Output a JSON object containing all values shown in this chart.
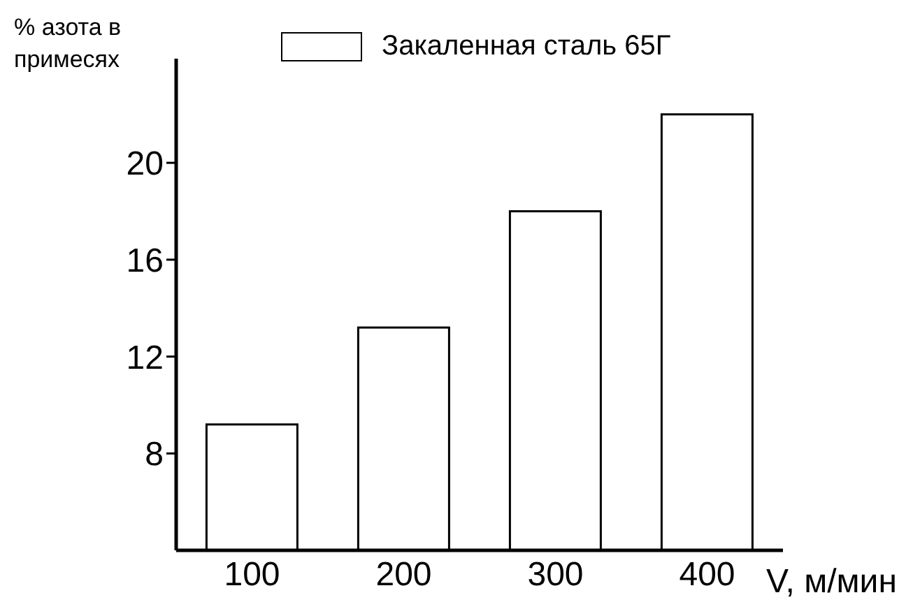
{
  "chart_data": {
    "type": "bar",
    "xlabel": "V, м/мин",
    "ylabel": "% азота в примесях",
    "categories": [
      "100",
      "200",
      "300",
      "400"
    ],
    "series": [
      {
        "name": "Закаленная сталь 65Г",
        "color": "#ffffff",
        "values": [
          9.2,
          13.2,
          18.0,
          22.0
        ]
      }
    ],
    "ylim": [
      4,
      24.3
    ],
    "yticks": [
      8,
      12,
      16,
      20
    ],
    "grid": false,
    "legend": "top"
  }
}
